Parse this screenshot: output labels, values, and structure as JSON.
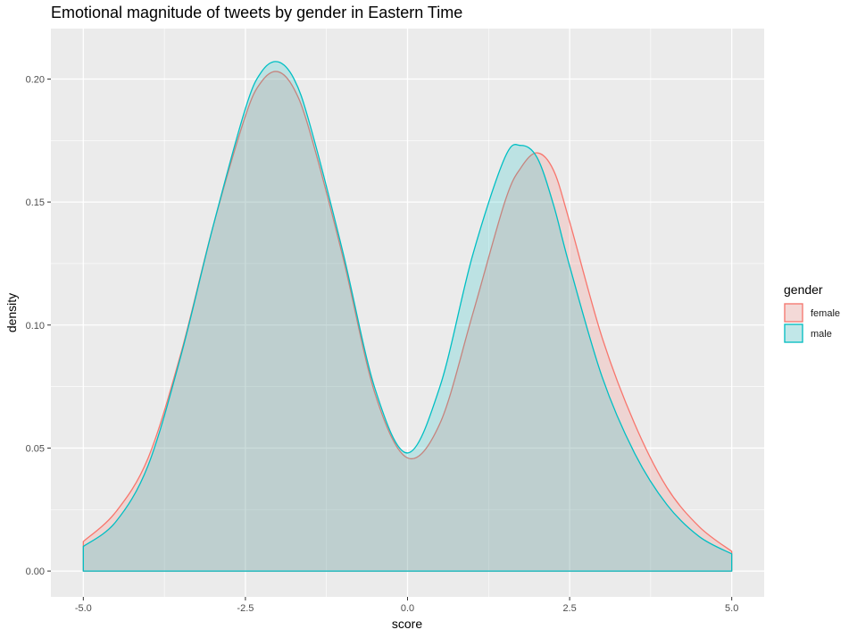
{
  "chart_data": {
    "type": "area",
    "title": "Emotional magnitude of tweets by gender in Eastern Time",
    "xlabel": "score",
    "ylabel": "density",
    "xlim": [
      -5.0,
      5.0
    ],
    "ylim": [
      0.0,
      0.21
    ],
    "x_ticks": [
      -5.0,
      -2.5,
      0.0,
      2.5,
      5.0
    ],
    "x_tick_labels": [
      "-5.0",
      "-2.5",
      "0.0",
      "2.5",
      "5.0"
    ],
    "y_ticks": [
      0.0,
      0.05,
      0.1,
      0.15,
      0.2
    ],
    "y_tick_labels": [
      "0.00",
      "0.05",
      "0.10",
      "0.15",
      "0.20"
    ],
    "grid": true,
    "legend": {
      "title": "gender",
      "position": "right"
    },
    "x": [
      -5.0,
      -4.5,
      -4.0,
      -3.5,
      -3.0,
      -2.5,
      -2.25,
      -2.0,
      -1.75,
      -1.5,
      -1.0,
      -0.5,
      0.0,
      0.5,
      1.0,
      1.5,
      1.75,
      2.0,
      2.25,
      2.5,
      3.0,
      3.5,
      4.0,
      4.5,
      5.0
    ],
    "series": [
      {
        "name": "female",
        "color": "#F8766D",
        "values": [
          0.012,
          0.024,
          0.046,
          0.088,
          0.14,
          0.185,
          0.199,
          0.203,
          0.196,
          0.178,
          0.128,
          0.072,
          0.046,
          0.06,
          0.104,
          0.15,
          0.164,
          0.17,
          0.163,
          0.142,
          0.095,
          0.06,
          0.034,
          0.018,
          0.008
        ]
      },
      {
        "name": "male",
        "color": "#00BFC4",
        "values": [
          0.01,
          0.02,
          0.043,
          0.087,
          0.14,
          0.188,
          0.203,
          0.207,
          0.2,
          0.181,
          0.13,
          0.074,
          0.048,
          0.075,
          0.128,
          0.168,
          0.173,
          0.168,
          0.149,
          0.124,
          0.079,
          0.048,
          0.027,
          0.014,
          0.007
        ]
      }
    ]
  }
}
